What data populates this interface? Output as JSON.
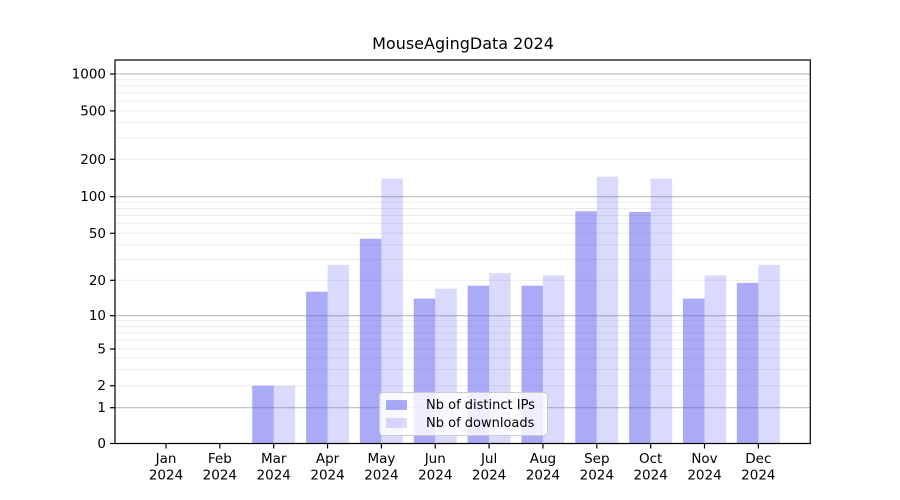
{
  "chart_data": {
    "type": "bar",
    "title": "MouseAgingData 2024",
    "categories": [
      "Jan",
      "Feb",
      "Mar",
      "Apr",
      "May",
      "Jun",
      "Jul",
      "Aug",
      "Sep",
      "Oct",
      "Nov",
      "Dec"
    ],
    "x_tick_year": "2024",
    "series": [
      {
        "name": "Nb of distinct IPs",
        "color": "#5555f0",
        "opacity": 0.5,
        "values": [
          null,
          null,
          2,
          16,
          45,
          14,
          18,
          18,
          76,
          75,
          14,
          19
        ]
      },
      {
        "name": "Nb of downloads",
        "color": "#5555f0",
        "opacity": 0.22,
        "values": [
          null,
          null,
          2,
          27,
          140,
          17,
          23,
          22,
          145,
          140,
          22,
          27
        ]
      }
    ],
    "y_ticks": [
      0,
      1,
      2,
      5,
      10,
      20,
      50,
      100,
      200,
      500,
      1000
    ],
    "yscale": "symlog",
    "ylim": [
      0,
      1300
    ],
    "grid": true,
    "legend_position": "lower center inside"
  },
  "colors": {
    "major_grid": "#b3b3b3",
    "minor_grid": "#ebebeb",
    "axis": "#000000",
    "legend_border": "#cccccc"
  }
}
